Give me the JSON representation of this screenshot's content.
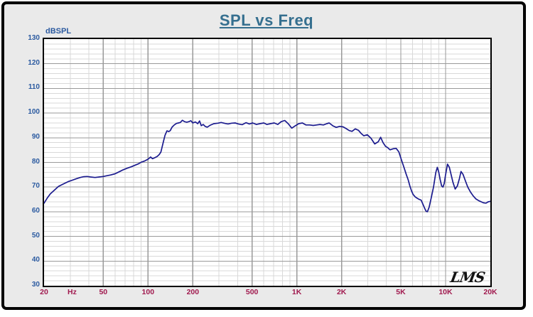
{
  "title": "SPL vs Freq",
  "y_axis": {
    "unit_label": "dBSPL",
    "tick_labels": [
      "130",
      "120",
      "110",
      "100",
      "90",
      "80",
      "70",
      "60",
      "50",
      "40",
      "30"
    ],
    "tick_values": [
      130,
      120,
      110,
      100,
      90,
      80,
      70,
      60,
      50,
      40,
      30
    ],
    "minor_step": 2,
    "major_step": 10
  },
  "x_axis": {
    "unit_label": "Hz",
    "ticks": [
      {
        "f": 20,
        "label": "20"
      },
      {
        "f": 50,
        "label": "50"
      },
      {
        "f": 100,
        "label": "100"
      },
      {
        "f": 200,
        "label": "200"
      },
      {
        "f": 500,
        "label": "500"
      },
      {
        "f": 1000,
        "label": "1K"
      },
      {
        "f": 2000,
        "label": "2K"
      },
      {
        "f": 5000,
        "label": "5K"
      },
      {
        "f": 10000,
        "label": "10K"
      },
      {
        "f": 20000,
        "label": "20K"
      }
    ],
    "major_freqs": [
      50,
      100,
      200,
      500,
      1000,
      2000,
      5000,
      10000
    ],
    "minor_mantissas": [
      3,
      4,
      6,
      7,
      8,
      9
    ]
  },
  "logo_text": "LMS",
  "colors": {
    "title": "#356f8f",
    "y_label": "#2b5aa0",
    "x_label": "#a11a4f",
    "curve": "#1b1b8e",
    "grid_minor": "#d9d9d9",
    "grid_major": "#9a9a9a",
    "frame_bg": "#eaeaea",
    "plot_border": "#000000"
  },
  "chart_data": {
    "type": "line",
    "title": "SPL vs Freq",
    "xlabel": "Hz",
    "ylabel": "dBSPL",
    "x_scale": "log",
    "xlim": [
      20,
      20000
    ],
    "ylim": [
      30,
      130
    ],
    "grid": "on",
    "legend": "none",
    "series": [
      {
        "name": "SPL",
        "x": [
          20,
          21,
          22,
          24,
          25,
          27,
          29,
          31,
          33,
          35,
          37,
          39,
          41,
          44,
          47,
          50,
          53,
          56,
          60,
          64,
          68,
          72,
          77,
          82,
          86,
          90,
          95,
          100,
          104,
          107,
          111,
          115,
          119,
          122,
          124,
          127,
          130,
          134,
          138,
          141,
          145,
          150,
          155,
          160,
          165,
          170,
          176,
          182,
          188,
          194,
          200,
          208,
          216,
          222,
          228,
          235,
          242,
          250,
          262,
          277,
          295,
          310,
          330,
          345,
          365,
          385,
          405,
          430,
          455,
          480,
          505,
          535,
          565,
          600,
          630,
          665,
          705,
          745,
          785,
          830,
          875,
          925,
          975,
          1030,
          1090,
          1150,
          1220,
          1290,
          1360,
          1430,
          1510,
          1590,
          1650,
          1750,
          1840,
          1940,
          2050,
          2150,
          2250,
          2350,
          2470,
          2600,
          2710,
          2820,
          2980,
          3150,
          3340,
          3530,
          3660,
          3800,
          3950,
          4080,
          4230,
          4420,
          4650,
          4850,
          5050,
          5250,
          5450,
          5600,
          5750,
          5900,
          6050,
          6250,
          6400,
          6600,
          6850,
          7050,
          7250,
          7400,
          7550,
          7750,
          8000,
          8300,
          8600,
          8800,
          9000,
          9200,
          9400,
          9600,
          9800,
          10000,
          10300,
          10600,
          10900,
          11200,
          11600,
          12000,
          12400,
          12700,
          13100,
          13600,
          14100,
          14700,
          15300,
          16000,
          16700,
          17400,
          18000,
          18700,
          19300,
          20000
        ],
        "y": [
          63.5,
          65.5,
          67.2,
          69.3,
          70.3,
          71.3,
          72.2,
          72.8,
          73.4,
          73.9,
          74.2,
          74.3,
          74.1,
          73.9,
          74.1,
          74.3,
          74.6,
          74.9,
          75.4,
          76.2,
          77.0,
          77.6,
          78.2,
          78.9,
          79.4,
          80.1,
          80.6,
          81.3,
          82.2,
          81.5,
          81.9,
          82.4,
          83.2,
          84.2,
          86.0,
          88.5,
          91.0,
          92.8,
          92.5,
          92.9,
          94.3,
          95.2,
          95.8,
          96.0,
          96.2,
          97.1,
          96.5,
          96.3,
          96.5,
          96.9,
          96.0,
          96.4,
          95.7,
          96.8,
          94.9,
          95.4,
          94.6,
          94.3,
          95.1,
          95.7,
          95.9,
          96.2,
          95.8,
          95.6,
          95.9,
          96.0,
          95.6,
          95.3,
          96.1,
          95.6,
          96.0,
          95.4,
          95.7,
          96.0,
          95.4,
          95.7,
          96.0,
          95.4,
          96.5,
          97.0,
          95.7,
          93.9,
          94.8,
          95.7,
          96.0,
          95.2,
          95.2,
          95.0,
          95.2,
          95.4,
          95.2,
          95.7,
          96.0,
          94.8,
          94.2,
          94.6,
          94.4,
          93.7,
          92.9,
          92.6,
          93.6,
          93.0,
          91.7,
          90.8,
          91.2,
          89.8,
          87.5,
          88.4,
          90.2,
          88.0,
          86.5,
          86.0,
          85.1,
          85.5,
          85.7,
          84.3,
          81.0,
          78.0,
          75.0,
          73.0,
          70.5,
          68.5,
          67.0,
          66.0,
          65.6,
          65.1,
          64.7,
          63.0,
          61.3,
          60.2,
          60.0,
          61.8,
          65.5,
          70.0,
          76.0,
          78.0,
          76.0,
          73.0,
          70.5,
          70.0,
          71.5,
          75.0,
          79.3,
          78.0,
          75.0,
          72.0,
          69.2,
          70.5,
          73.5,
          76.3,
          75.2,
          72.5,
          70.0,
          68.0,
          66.5,
          65.2,
          64.5,
          64.0,
          63.6,
          63.5,
          64.0,
          64.2
        ]
      }
    ]
  }
}
